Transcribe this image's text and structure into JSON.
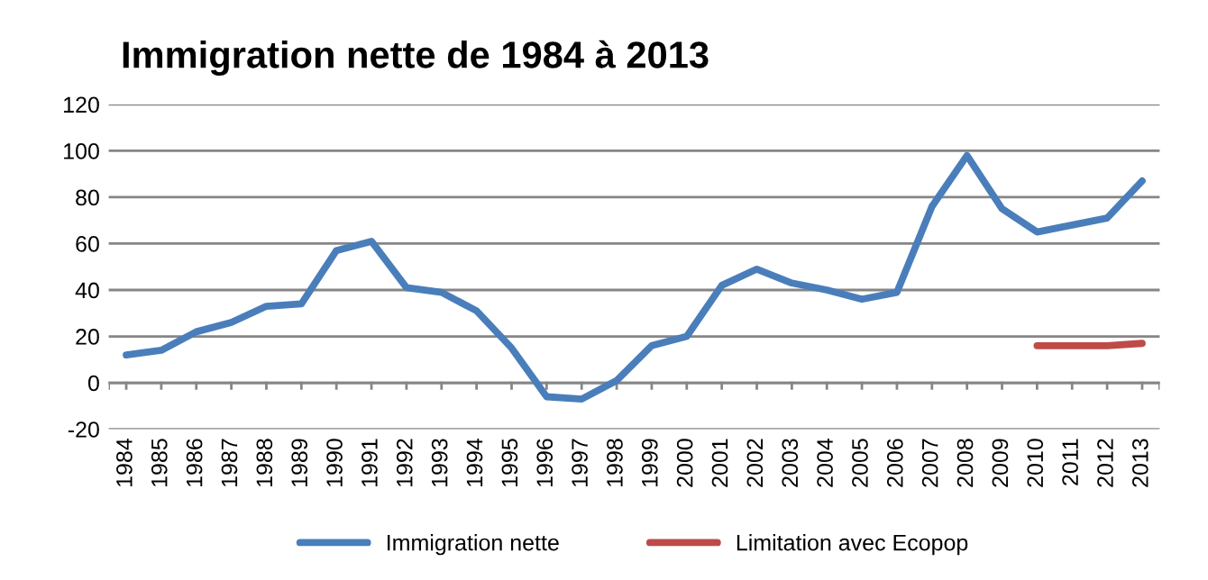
{
  "chart_data": {
    "type": "line",
    "title": "Immigration nette de 1984 à 2013",
    "categories": [
      "1984",
      "1985",
      "1986",
      "1987",
      "1988",
      "1989",
      "1990",
      "1991",
      "1992",
      "1993",
      "1994",
      "1995",
      "1996",
      "1997",
      "1998",
      "1999",
      "2000",
      "2001",
      "2002",
      "2003",
      "2004",
      "2005",
      "2006",
      "2007",
      "2008",
      "2009",
      "2010",
      "2011",
      "2012",
      "2013"
    ],
    "series": [
      {
        "name": "Immigration nette",
        "color": "#4a7ebb",
        "values": [
          12,
          14,
          22,
          26,
          33,
          34,
          57,
          61,
          41,
          39,
          31,
          15,
          -6,
          -7,
          1,
          16,
          20,
          42,
          49,
          43,
          40,
          36,
          39,
          76,
          98,
          75,
          65,
          68,
          71,
          87
        ]
      },
      {
        "name": "Limitation avec Ecopop",
        "color": "#be4b48",
        "values": [
          null,
          null,
          null,
          null,
          null,
          null,
          null,
          null,
          null,
          null,
          null,
          null,
          null,
          null,
          null,
          null,
          null,
          null,
          null,
          null,
          null,
          null,
          null,
          null,
          null,
          null,
          16,
          16,
          16,
          17
        ]
      }
    ],
    "ylim": [
      -20,
      120
    ],
    "yticks": [
      -20,
      0,
      20,
      40,
      60,
      80,
      100,
      120
    ],
    "grid": "y",
    "legend": "bottom",
    "marker": "none",
    "line_style": "solid"
  }
}
